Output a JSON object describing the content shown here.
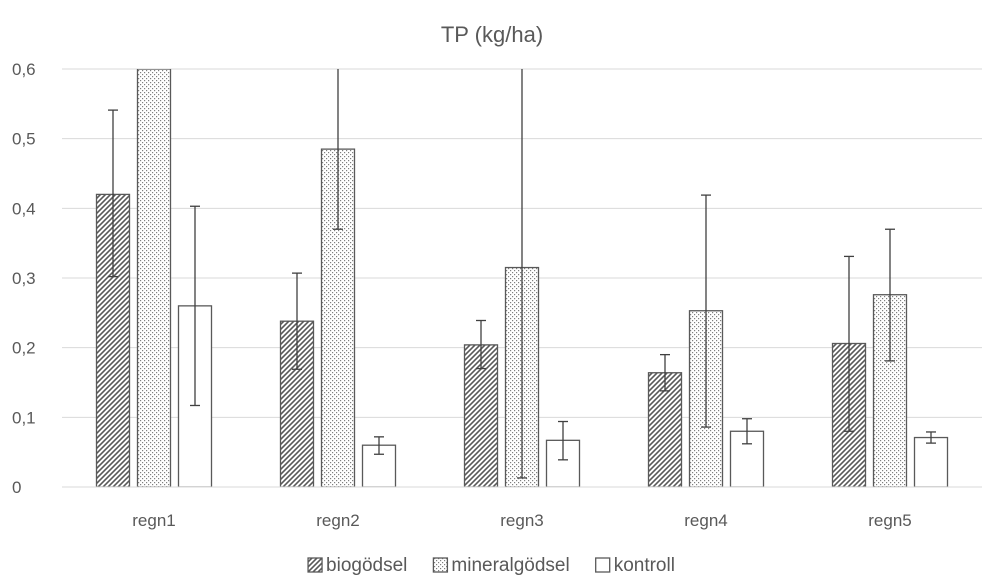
{
  "chart_data": {
    "type": "bar",
    "title": "TP (kg/ha)",
    "xlabel": "",
    "ylabel": "",
    "ylim": [
      0,
      0.6
    ],
    "yticks": [
      "0",
      "0,1",
      "0,2",
      "0,3",
      "0,4",
      "0,5",
      "0,6"
    ],
    "categories": [
      "regn1",
      "regn2",
      "regn3",
      "regn4",
      "regn5"
    ],
    "grid": true,
    "legend_position": "bottom",
    "series": [
      {
        "name": "biogödsel",
        "pattern": "diagonal-hatch",
        "color": "#595959",
        "values": [
          0.42,
          0.238,
          0.204,
          0.164,
          0.206
        ],
        "error_low": [
          0.302,
          0.169,
          0.17,
          0.138,
          0.08
        ],
        "error_high": [
          0.541,
          0.307,
          0.239,
          0.19,
          0.331
        ]
      },
      {
        "name": "mineralgödsel",
        "pattern": "dots",
        "color": "#595959",
        "values": [
          0.6,
          0.485,
          0.315,
          0.253,
          0.276
        ],
        "error_low": [
          0.6,
          0.37,
          0.013,
          0.086,
          0.181
        ],
        "error_high": [
          0.6,
          0.6,
          0.6,
          0.419,
          0.37
        ]
      },
      {
        "name": "kontroll",
        "pattern": "none",
        "color": "#595959",
        "values": [
          0.26,
          0.06,
          0.067,
          0.08,
          0.071
        ],
        "error_low": [
          0.117,
          0.047,
          0.039,
          0.062,
          0.063
        ],
        "error_high": [
          0.403,
          0.072,
          0.094,
          0.098,
          0.079
        ]
      }
    ]
  }
}
